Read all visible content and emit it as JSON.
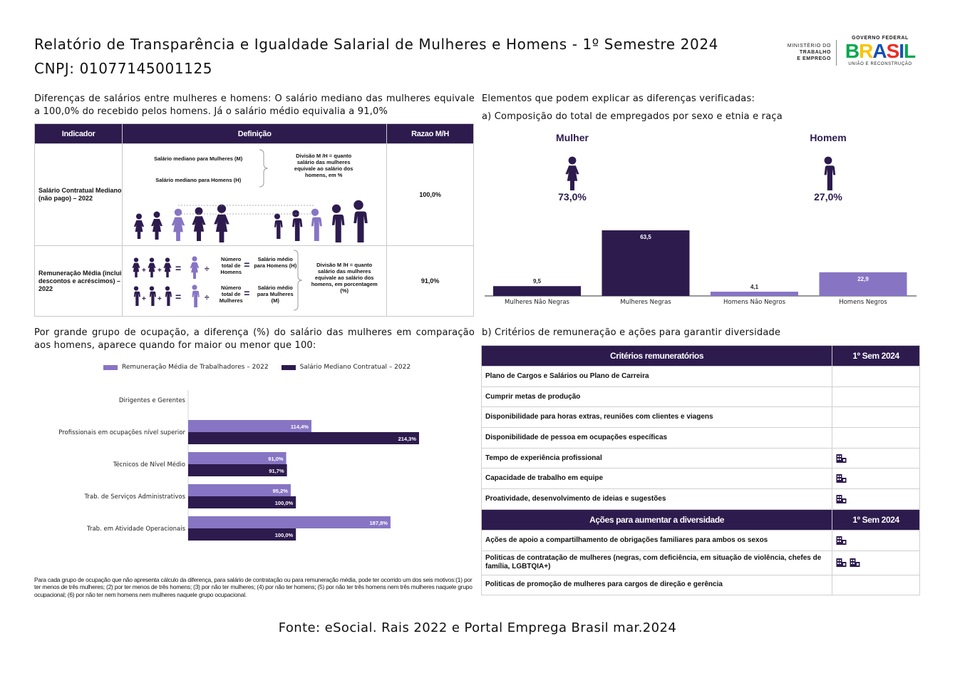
{
  "header": {
    "title": "Relatório de Transparência e Igualdade Salarial de Mulheres e Homens - 1º Semestre 2024",
    "cnpj": "CNPJ: 01077145001125"
  },
  "logos": {
    "ministry": [
      "MINISTÉRIO DO",
      "TRABALHO",
      "E EMPREGO"
    ],
    "gov_top": "GOVERNO FEDERAL",
    "gov_word": "BRASIL",
    "gov_tagline": "UNIÃO E RECONSTRUÇÃO",
    "gov_colors": [
      "#00a84f",
      "#fbc300",
      "#1351b4",
      "#ee2a24",
      "#1351b4",
      "#00a84f"
    ]
  },
  "salary_diff": {
    "text": "Diferenças de salários entre mulheres e homens: O salário mediano das mulheres equivale a 100,0% do recebido pelos homens. Já o salário médio equivalia a 91,0%"
  },
  "indicator_table": {
    "headers": [
      "Indicador",
      "Definição",
      "Razao M/H"
    ],
    "rows": [
      {
        "name": "Salário Contratual Mediano (não pago) – 2022",
        "value": "100,0%",
        "def_lines": [
          "Salário mediano para Mulheres (M)",
          "Salário mediano para Homens (H)"
        ],
        "def_note": "Divisão M /H = quanto salário das mulheres equivale ao salário dos homens, em %"
      },
      {
        "name": "Remuneração Média (inclui descontos e acréscimos) – 2022",
        "value": "91,0%",
        "eq_women": [
          "Número total de Homens",
          "Salário médio para Homens (H)"
        ],
        "eq_men": [
          "Número total de Mulheres",
          "Salário médio para Mulheres (M)"
        ],
        "def_note": "Divisão M /H = quanto salário das mulheres equivale ao salário dos homens, em porcentagem (%)"
      }
    ]
  },
  "composition": {
    "section_title": "Elementos que podem explicar as diferenças verificadas:",
    "subtitle": "a) Composição do total de empregados por sexo e etnia e raça",
    "women_label": "Mulher",
    "women_pct": "73,0%",
    "men_label": "Homem",
    "men_pct": "27,0%"
  },
  "chart_data": [
    {
      "type": "bar",
      "categories": [
        "Mulheres Não Negras",
        "Mulheres Negras",
        "Homens Não Negros",
        "Homens Negros"
      ],
      "values": [
        9.5,
        63.5,
        4.1,
        22.9
      ],
      "value_labels": [
        "9,5",
        "63,5",
        "4,1",
        "22,9"
      ],
      "colors": [
        "#2d1b4e",
        "#2d1b4e",
        "#8775c4",
        "#8775c4"
      ],
      "ylim": [
        0,
        63.5
      ]
    },
    {
      "type": "bar",
      "orientation": "horizontal",
      "categories": [
        "Dirigentes e Gerentes",
        "Profissionais em ocupações nível superior",
        "Técnicos de Nível Médio",
        "Trab. de Serviços Administrativos",
        "Trab. em Atividade Operacionais"
      ],
      "series": [
        {
          "name": "Remuneração Média de Trabalhadores – 2022",
          "values": [
            null,
            114.4,
            91.0,
            95.2,
            187.8
          ],
          "labels": [
            "",
            "114,4%",
            "91,0%",
            "95,2%",
            "187,8%"
          ],
          "color": "#8775c4"
        },
        {
          "name": "Salário Mediano Contratual – 2022",
          "values": [
            null,
            214.3,
            91.7,
            100.0,
            100.0
          ],
          "labels": [
            "",
            "214,3%",
            "91,7%",
            "100,0%",
            "100,0%"
          ],
          "color": "#2d1b4e"
        }
      ],
      "xlim": [
        0,
        214.3
      ],
      "legend": "top"
    }
  ],
  "occupation": {
    "text": "Por grande grupo de ocupação, a diferença (%) do salário das mulheres em comparação aos homens, aparece quando for maior ou menor que 100:",
    "footnote": "Para cada grupo de ocupação que não apresenta cálculo da diferença, para salário de contratação ou para remuneração média, pode ter ocorrido um dos seis motivos:(1) por ter menos de três mulheres; (2) por ter menos de três homens; (3) por não ter mulheres; (4) por não ter homens; (5) por não ter três homens nem três mulheres naquele grupo ocupacional; (6) por não ter nem homens nem mulheres naquele grupo ocupacional."
  },
  "criteria": {
    "subtitle": "b) Critérios de remuneração e ações para garantir diversidade",
    "header1": "Critérios remuneratórios",
    "header2": "Ações para aumentar a diversidade",
    "period": "1º Sem 2024",
    "rows": [
      {
        "label": "Plano de Cargos e Salários ou Plano de Carreira",
        "mark": 0
      },
      {
        "label": "Cumprir metas de produção",
        "mark": 0
      },
      {
        "label": "Disponibilidade para horas extras, reuniões com clientes e viagens",
        "mark": 0
      },
      {
        "label": "Disponibilidade de pessoa em ocupações específicas",
        "mark": 0
      },
      {
        "label": "Tempo de experiência profissional",
        "mark": 1
      },
      {
        "label": "Capacidade de trabalho em equipe",
        "mark": 1
      },
      {
        "label": "Proatividade, desenvolvimento de ideias e sugestões",
        "mark": 1
      }
    ],
    "actions": [
      {
        "label": "Ações de apoio a compartilhamento de obrigações familiares para ambos os sexos",
        "mark": 1
      },
      {
        "label": "Politicas de contratação de mulheres (negras, com deficiência, em situação de violência, chefes de família, LGBTQIA+)",
        "mark": 2
      },
      {
        "label": "Politicas de promoção de mulheres para cargos de direção e gerência",
        "mark": 0
      }
    ],
    "icon": "company-building-icon"
  },
  "source": "Fonte: eSocial. Rais 2022 e Portal Emprega Brasil mar.2024"
}
